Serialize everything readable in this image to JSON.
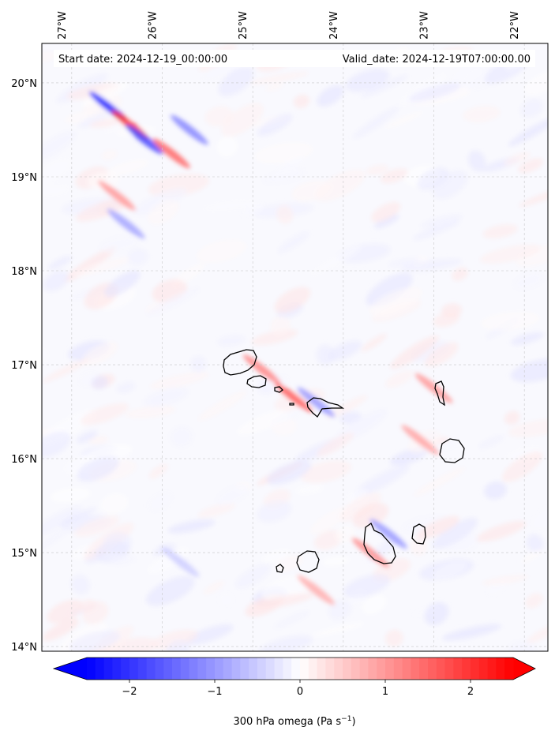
{
  "chart_data": {
    "type": "heatmap",
    "title": "",
    "annotations": {
      "start_date": "Start date: 2024-12-19_00:00:00",
      "valid_date": "Valid_date: 2024-12-19T07:00:00.00"
    },
    "x_axis": {
      "ticks": [
        -27,
        -26,
        -25,
        -24,
        -23,
        -22
      ],
      "tick_labels": [
        "27°W",
        "26°W",
        "25°W",
        "24°W",
        "23°W",
        "22°W"
      ],
      "range": [
        -27.33,
        -21.74
      ],
      "label_position": "top"
    },
    "y_axis": {
      "ticks": [
        14,
        15,
        16,
        17,
        18,
        19,
        20
      ],
      "tick_labels": [
        "14°N",
        "15°N",
        "16°N",
        "17°N",
        "18°N",
        "19°N",
        "20°N"
      ],
      "range": [
        13.95,
        20.42
      ]
    },
    "grid": true,
    "colorbar": {
      "label_main": "300 hPa omega (Pa s",
      "label_exp": "−1",
      "label_close": ")",
      "ticks": [
        -2,
        -1,
        0,
        1,
        2
      ],
      "tick_labels": [
        "−2",
        "−1",
        "0",
        "1",
        "2"
      ],
      "range": [
        -2.5,
        2.5
      ],
      "extend": "both",
      "colormap": "bwr",
      "low_color": "#0000ff",
      "mid_color": "#ffffff",
      "high_color": "#ff0000"
    },
    "features": [
      {
        "lon": -26.6,
        "lat": 19.75,
        "value": -2.2
      },
      {
        "lon": -26.35,
        "lat": 19.55,
        "value": 2.0
      },
      {
        "lon": -26.2,
        "lat": 19.4,
        "value": -1.8
      },
      {
        "lon": -25.9,
        "lat": 19.25,
        "value": 1.5
      },
      {
        "lon": -25.7,
        "lat": 19.5,
        "value": -1.2
      },
      {
        "lon": -26.5,
        "lat": 18.8,
        "value": 1.0
      },
      {
        "lon": -26.4,
        "lat": 18.5,
        "value": -0.9
      },
      {
        "lon": -24.9,
        "lat": 16.95,
        "value": 1.2
      },
      {
        "lon": -24.55,
        "lat": 16.65,
        "value": 1.6
      },
      {
        "lon": -24.3,
        "lat": 16.6,
        "value": -1.0
      },
      {
        "lon": -23.0,
        "lat": 16.75,
        "value": 1.0
      },
      {
        "lon": -23.15,
        "lat": 16.2,
        "value": 0.9
      },
      {
        "lon": -23.5,
        "lat": 15.2,
        "value": -1.0
      },
      {
        "lon": -23.7,
        "lat": 15.0,
        "value": 1.1
      },
      {
        "lon": -24.3,
        "lat": 14.6,
        "value": 0.8
      },
      {
        "lon": -25.8,
        "lat": 14.9,
        "value": -0.5
      }
    ]
  }
}
